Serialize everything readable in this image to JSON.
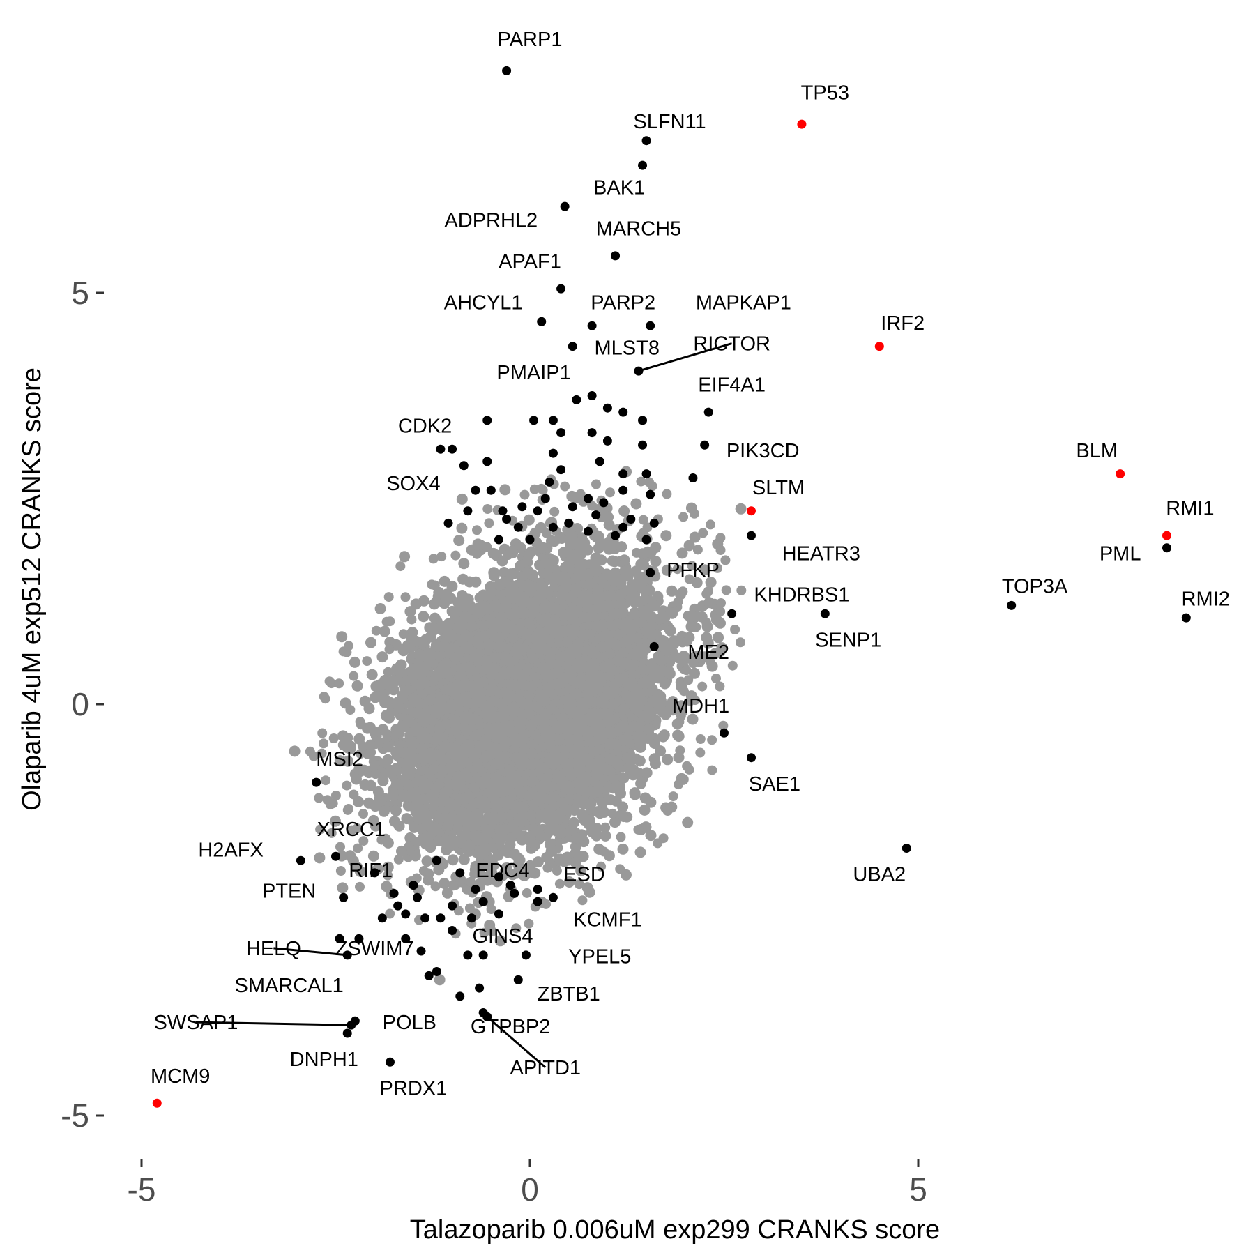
{
  "chart_data": {
    "type": "scatter",
    "title": "",
    "xlabel": "Talazoparib 0.006uM exp299 CRANKS score",
    "ylabel": "Olaparib 4uM exp512 CRANKS score",
    "xlim": [
      -5.5,
      9.2
    ],
    "ylim": [
      -5.4,
      7.7
    ],
    "x_ticks": [
      -5,
      0,
      5
    ],
    "y_ticks": [
      -5,
      0,
      5
    ],
    "x_tick_labels": [
      "-5",
      "0",
      "5"
    ],
    "y_tick_labels": [
      "-5",
      "0",
      "5"
    ],
    "grid": false,
    "legend": "none",
    "colors": {
      "background_genes": "#999999",
      "hit_genes": "#000000",
      "highlight_genes": "#ff0000"
    },
    "background": {
      "count": 9000,
      "sd_x": 0.75,
      "sd_y": 0.75,
      "rho": 0.3,
      "extent": 3.8
    },
    "labeled_genes": [
      {
        "gene": "PARP1",
        "x": -0.3,
        "y": 7.7,
        "color": "black",
        "label": {
          "x": 0.0,
          "y": 8.0,
          "anchor": "middle"
        }
      },
      {
        "gene": "TP53",
        "x": 3.5,
        "y": 7.05,
        "color": "red",
        "label": {
          "x": 3.8,
          "y": 7.35,
          "anchor": "middle"
        }
      },
      {
        "gene": "SLFN11",
        "x": 1.5,
        "y": 6.85,
        "color": "black",
        "label": {
          "x": 1.8,
          "y": 7.0,
          "anchor": "middle"
        }
      },
      {
        "gene": "BAK1",
        "x": 1.45,
        "y": 6.55,
        "color": "black",
        "label": {
          "x": 1.15,
          "y": 6.2,
          "anchor": "middle"
        }
      },
      {
        "gene": "ADPRHL2",
        "x": 0.45,
        "y": 6.05,
        "color": "black",
        "label": {
          "x": -0.5,
          "y": 5.8,
          "anchor": "middle"
        }
      },
      {
        "gene": "MARCH5",
        "x": 1.1,
        "y": 5.45,
        "color": "black",
        "label": {
          "x": 1.4,
          "y": 5.7,
          "anchor": "middle"
        }
      },
      {
        "gene": "APAF1",
        "x": 0.4,
        "y": 5.05,
        "color": "black",
        "label": {
          "x": 0.0,
          "y": 5.3,
          "anchor": "middle"
        }
      },
      {
        "gene": "AHCYL1",
        "x": 0.15,
        "y": 4.65,
        "color": "black",
        "label": {
          "x": -0.6,
          "y": 4.8,
          "anchor": "middle"
        }
      },
      {
        "gene": "PARP2",
        "x": 0.8,
        "y": 4.6,
        "color": "black",
        "label": {
          "x": 1.2,
          "y": 4.8,
          "anchor": "middle"
        }
      },
      {
        "gene": "MAPKAP1",
        "x": 1.55,
        "y": 4.6,
        "color": "black",
        "label": {
          "x": 2.75,
          "y": 4.8,
          "anchor": "middle"
        }
      },
      {
        "gene": "IRF2",
        "x": 4.5,
        "y": 4.35,
        "color": "red",
        "label": {
          "x": 4.8,
          "y": 4.55,
          "anchor": "middle"
        }
      },
      {
        "gene": "RICTOR",
        "x": 1.4,
        "y": 4.05,
        "color": "black",
        "label": {
          "x": 2.6,
          "y": 4.3,
          "anchor": "middle"
        },
        "leader": true
      },
      {
        "gene": "MLST8",
        "x": 0.55,
        "y": 4.35,
        "color": "black",
        "label": {
          "x": 1.25,
          "y": 4.25,
          "anchor": "middle"
        }
      },
      {
        "gene": "PMAIP1",
        "x": -0.55,
        "y": 3.45,
        "color": "black",
        "label": {
          "x": 0.05,
          "y": 3.95,
          "anchor": "middle"
        }
      },
      {
        "gene": "EIF4A1",
        "x": 2.3,
        "y": 3.55,
        "color": "black",
        "label": {
          "x": 2.6,
          "y": 3.8,
          "anchor": "middle"
        }
      },
      {
        "gene": "CDK2",
        "x": -1.15,
        "y": 3.1,
        "color": "black",
        "label": {
          "x": -1.35,
          "y": 3.3,
          "anchor": "middle"
        }
      },
      {
        "gene": "PIK3CD",
        "x": 2.25,
        "y": 3.15,
        "color": "black",
        "label": {
          "x": 3.0,
          "y": 3.0,
          "anchor": "middle"
        }
      },
      {
        "gene": "SOX4",
        "x": -0.85,
        "y": 2.9,
        "color": "black",
        "label": {
          "x": -1.5,
          "y": 2.6,
          "anchor": "middle"
        }
      },
      {
        "gene": "BLM",
        "x": 7.6,
        "y": 2.8,
        "color": "red",
        "label": {
          "x": 7.3,
          "y": 3.0,
          "anchor": "middle"
        }
      },
      {
        "gene": "SLTM",
        "x": 2.85,
        "y": 2.35,
        "color": "red",
        "label": {
          "x": 3.2,
          "y": 2.55,
          "anchor": "middle"
        }
      },
      {
        "gene": "RMI1",
        "x": 8.2,
        "y": 2.05,
        "color": "red",
        "label": {
          "x": 8.5,
          "y": 2.3,
          "anchor": "middle"
        }
      },
      {
        "gene": "HEATR3",
        "x": 2.85,
        "y": 2.05,
        "color": "black",
        "label": {
          "x": 3.75,
          "y": 1.75,
          "anchor": "middle"
        }
      },
      {
        "gene": "PML",
        "x": 8.2,
        "y": 1.9,
        "color": "black",
        "label": {
          "x": 7.6,
          "y": 1.75,
          "anchor": "middle"
        }
      },
      {
        "gene": "PFKP",
        "x": 1.55,
        "y": 1.6,
        "color": "black",
        "label": {
          "x": 2.1,
          "y": 1.55,
          "anchor": "middle"
        }
      },
      {
        "gene": "TOP3A",
        "x": 6.2,
        "y": 1.2,
        "color": "black",
        "label": {
          "x": 6.5,
          "y": 1.35,
          "anchor": "middle"
        }
      },
      {
        "gene": "KHDRBS1",
        "x": 2.6,
        "y": 1.1,
        "color": "black",
        "label": {
          "x": 3.5,
          "y": 1.25,
          "anchor": "middle"
        }
      },
      {
        "gene": "RMI2",
        "x": 8.45,
        "y": 1.05,
        "color": "black",
        "label": {
          "x": 8.7,
          "y": 1.2,
          "anchor": "middle"
        }
      },
      {
        "gene": "SENP1",
        "x": 3.8,
        "y": 1.1,
        "color": "black",
        "label": {
          "x": 4.1,
          "y": 0.7,
          "anchor": "middle"
        }
      },
      {
        "gene": "ME2",
        "x": 1.6,
        "y": 0.7,
        "color": "black",
        "label": {
          "x": 2.3,
          "y": 0.55,
          "anchor": "middle"
        }
      },
      {
        "gene": "MDH1",
        "x": 2.5,
        "y": -0.35,
        "color": "black",
        "label": {
          "x": 2.2,
          "y": -0.1,
          "anchor": "middle"
        }
      },
      {
        "gene": "SAE1",
        "x": 2.85,
        "y": -0.65,
        "color": "black",
        "label": {
          "x": 3.15,
          "y": -1.05,
          "anchor": "middle"
        }
      },
      {
        "gene": "MSI2",
        "x": -2.75,
        "y": -0.95,
        "color": "black",
        "label": {
          "x": -2.45,
          "y": -0.75,
          "anchor": "middle"
        }
      },
      {
        "gene": "XRCC1",
        "x": -2.5,
        "y": -1.85,
        "color": "black",
        "label": {
          "x": -2.3,
          "y": -1.6,
          "anchor": "middle"
        }
      },
      {
        "gene": "H2AFX",
        "x": -2.95,
        "y": -1.9,
        "color": "black",
        "label": {
          "x": -3.85,
          "y": -1.85,
          "anchor": "middle"
        }
      },
      {
        "gene": "RIF1",
        "x": -2.0,
        "y": -2.05,
        "color": "black",
        "label": {
          "x": -2.05,
          "y": -2.1,
          "anchor": "middle"
        }
      },
      {
        "gene": "EDC4",
        "x": -0.4,
        "y": -2.1,
        "color": "black",
        "label": {
          "x": -0.35,
          "y": -2.1,
          "anchor": "middle"
        }
      },
      {
        "gene": "ESD",
        "x": 0.1,
        "y": -2.25,
        "color": "black",
        "label": {
          "x": 0.7,
          "y": -2.15,
          "anchor": "middle"
        }
      },
      {
        "gene": "UBA2",
        "x": 4.85,
        "y": -1.75,
        "color": "black",
        "label": {
          "x": 4.5,
          "y": -2.15,
          "anchor": "middle"
        }
      },
      {
        "gene": "PTEN",
        "x": -2.4,
        "y": -2.35,
        "color": "black",
        "label": {
          "x": -3.1,
          "y": -2.35,
          "anchor": "middle"
        }
      },
      {
        "gene": "KCMF1",
        "x": 0.3,
        "y": -2.35,
        "color": "black",
        "label": {
          "x": 1.0,
          "y": -2.7,
          "anchor": "middle"
        }
      },
      {
        "gene": "GINS4",
        "x": -1.0,
        "y": -2.75,
        "color": "black",
        "label": {
          "x": -0.35,
          "y": -2.9,
          "anchor": "middle"
        }
      },
      {
        "gene": "HELQ",
        "x": -2.35,
        "y": -3.05,
        "color": "black",
        "label": {
          "x": -3.3,
          "y": -3.05,
          "anchor": "middle"
        },
        "leader": true
      },
      {
        "gene": "ZSWIM7",
        "x": -1.4,
        "y": -3.0,
        "color": "black",
        "label": {
          "x": -2.0,
          "y": -3.05,
          "anchor": "middle"
        }
      },
      {
        "gene": "YPEL5",
        "x": -0.05,
        "y": -3.05,
        "color": "black",
        "label": {
          "x": 0.9,
          "y": -3.15,
          "anchor": "middle"
        }
      },
      {
        "gene": "SMARCAL1",
        "x": -1.3,
        "y": -3.3,
        "color": "black",
        "label": {
          "x": -3.1,
          "y": -3.5,
          "anchor": "middle"
        }
      },
      {
        "gene": "ZBTB1",
        "x": -0.15,
        "y": -3.35,
        "color": "black",
        "label": {
          "x": 0.5,
          "y": -3.6,
          "anchor": "middle"
        }
      },
      {
        "gene": "SWSAP1",
        "x": -2.3,
        "y": -3.9,
        "color": "black",
        "label": {
          "x": -4.3,
          "y": -3.95,
          "anchor": "middle"
        },
        "leader": true
      },
      {
        "gene": "POLB",
        "x": -2.25,
        "y": -3.85,
        "color": "black",
        "label": {
          "x": -1.55,
          "y": -3.95,
          "anchor": "middle"
        }
      },
      {
        "gene": "GTPBP2",
        "x": -0.6,
        "y": -3.75,
        "color": "black",
        "label": {
          "x": -0.25,
          "y": -4.0,
          "anchor": "middle"
        }
      },
      {
        "gene": "APITD1",
        "x": -0.55,
        "y": -3.8,
        "color": "black",
        "label": {
          "x": 0.2,
          "y": -4.5,
          "anchor": "middle"
        },
        "leader": true
      },
      {
        "gene": "DNPH1",
        "x": -2.35,
        "y": -4.0,
        "color": "black",
        "label": {
          "x": -2.65,
          "y": -4.4,
          "anchor": "middle"
        }
      },
      {
        "gene": "PRDX1",
        "x": -1.8,
        "y": -4.35,
        "color": "black",
        "label": {
          "x": -1.5,
          "y": -4.75,
          "anchor": "middle"
        }
      },
      {
        "gene": "MCM9",
        "x": -4.8,
        "y": -4.85,
        "color": "red",
        "label": {
          "x": -4.5,
          "y": -4.6,
          "anchor": "middle"
        }
      }
    ],
    "other_hit_genes": [
      [
        -1.0,
        3.1
      ],
      [
        -0.55,
        2.95
      ],
      [
        -0.8,
        2.35
      ],
      [
        -1.05,
        2.2
      ],
      [
        -0.5,
        2.6
      ],
      [
        -0.3,
        2.25
      ],
      [
        -0.1,
        2.4
      ],
      [
        0.1,
        2.35
      ],
      [
        0.05,
        3.45
      ],
      [
        0.3,
        3.45
      ],
      [
        0.4,
        3.3
      ],
      [
        0.6,
        3.7
      ],
      [
        0.8,
        3.75
      ],
      [
        1.0,
        3.6
      ],
      [
        1.2,
        3.55
      ],
      [
        1.45,
        3.45
      ],
      [
        0.8,
        3.3
      ],
      [
        1.0,
        3.2
      ],
      [
        1.45,
        3.15
      ],
      [
        0.3,
        3.05
      ],
      [
        0.9,
        2.95
      ],
      [
        1.2,
        2.8
      ],
      [
        1.5,
        2.8
      ],
      [
        0.4,
        2.85
      ],
      [
        0.25,
        2.7
      ],
      [
        0.75,
        2.5
      ],
      [
        1.2,
        2.6
      ],
      [
        1.55,
        2.55
      ],
      [
        2.1,
        2.75
      ],
      [
        0.55,
        2.4
      ],
      [
        0.85,
        2.3
      ],
      [
        1.3,
        2.25
      ],
      [
        1.6,
        2.2
      ],
      [
        0.5,
        2.2
      ],
      [
        0.3,
        2.15
      ],
      [
        1.1,
        2.05
      ],
      [
        -0.7,
        2.6
      ],
      [
        -0.4,
        2.0
      ],
      [
        0.0,
        2.0
      ],
      [
        0.75,
        2.1
      ],
      [
        1.2,
        2.15
      ],
      [
        1.5,
        2.0
      ],
      [
        -0.15,
        2.15
      ],
      [
        -0.35,
        2.35
      ],
      [
        0.95,
        2.45
      ],
      [
        0.2,
        2.5
      ],
      [
        -1.2,
        -1.9
      ],
      [
        -1.5,
        -2.2
      ],
      [
        -1.7,
        -2.45
      ],
      [
        -1.6,
        -2.55
      ],
      [
        -1.9,
        -2.6
      ],
      [
        -2.2,
        -2.85
      ],
      [
        -2.45,
        -2.85
      ],
      [
        -1.6,
        -2.85
      ],
      [
        -1.35,
        -2.6
      ],
      [
        -1.0,
        -2.45
      ],
      [
        -0.7,
        -2.25
      ],
      [
        -0.9,
        -2.05
      ],
      [
        -0.6,
        -2.4
      ],
      [
        -0.2,
        -2.3
      ],
      [
        0.1,
        -2.4
      ],
      [
        -0.25,
        -2.2
      ],
      [
        -0.4,
        -2.55
      ],
      [
        -0.8,
        -3.05
      ],
      [
        -0.6,
        -3.05
      ],
      [
        -1.2,
        -3.25
      ],
      [
        -1.45,
        -2.35
      ],
      [
        -1.75,
        -2.3
      ],
      [
        -1.15,
        -2.6
      ],
      [
        -0.9,
        -3.55
      ],
      [
        -0.65,
        -3.45
      ],
      [
        -0.75,
        -2.6
      ]
    ]
  }
}
